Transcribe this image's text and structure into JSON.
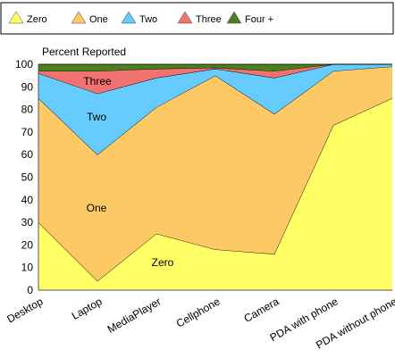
{
  "chart_data": {
    "type": "area",
    "stacked": true,
    "ylabel": "Percent Reported",
    "ylim": [
      0,
      100
    ],
    "yticks": [
      "0",
      "10",
      "20",
      "30",
      "40",
      "50",
      "60",
      "70",
      "80",
      "90",
      "100"
    ],
    "categories": [
      "Desktop",
      "Laptop",
      "MediaPlayer",
      "Cellphone",
      "Camera",
      "PDA with phone",
      "PDA without phone"
    ],
    "series": [
      {
        "name": "Zero",
        "values": [
          30,
          4,
          25,
          18,
          16,
          73,
          85
        ],
        "color": "#ffff66"
      },
      {
        "name": "One",
        "values": [
          55,
          56,
          56,
          77,
          62,
          24,
          14
        ],
        "color": "#fcc964"
      },
      {
        "name": "Two",
        "values": [
          11,
          27,
          13,
          3,
          16,
          3,
          1
        ],
        "color": "#66ccff"
      },
      {
        "name": "Three",
        "values": [
          1,
          10,
          4,
          0.5,
          3,
          0,
          0
        ],
        "color": "#f27171"
      },
      {
        "name": "Four +",
        "values": [
          3,
          3,
          2,
          1.5,
          3,
          0,
          0
        ],
        "color": "#4d7f1e"
      }
    ],
    "legend_position": "top",
    "area_labels": [
      {
        "series": "Zero",
        "text": "Zero"
      },
      {
        "series": "One",
        "text": "One"
      },
      {
        "series": "Two",
        "text": "Two"
      },
      {
        "series": "Three",
        "text": "Three"
      }
    ],
    "grid": true
  }
}
